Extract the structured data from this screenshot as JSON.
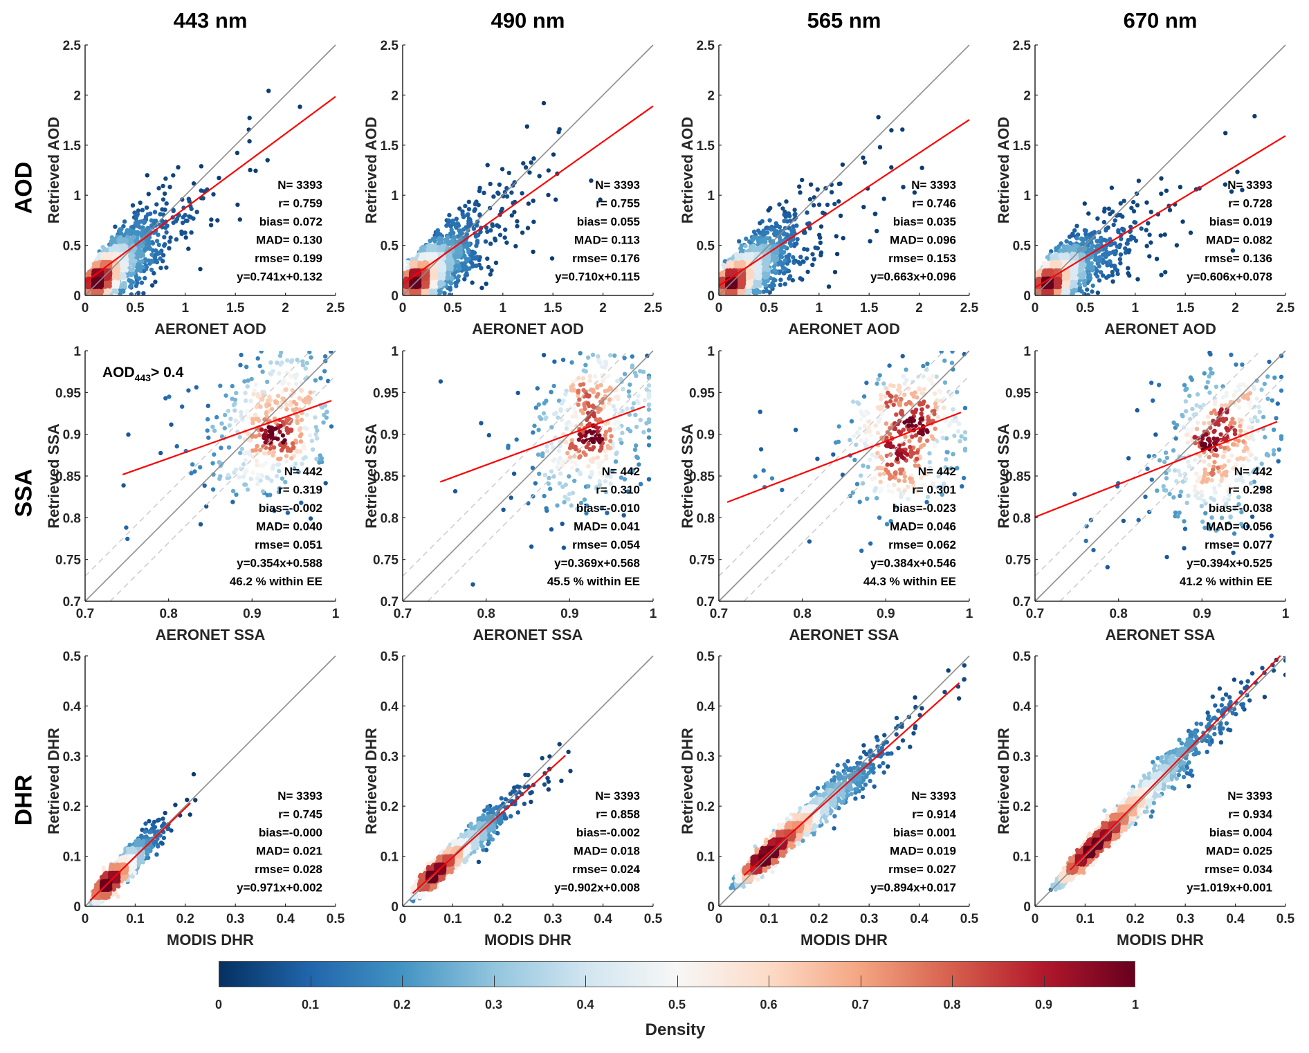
{
  "column_titles": [
    "443 nm",
    "490 nm",
    "565 nm",
    "670 nm"
  ],
  "row_labels": [
    "AOD",
    "SSA",
    "DHR"
  ],
  "colormap": [
    "#053061",
    "#2166ac",
    "#4393c3",
    "#92c5de",
    "#d1e5f0",
    "#f7f7f7",
    "#fddbc7",
    "#f4a582",
    "#d6604d",
    "#b2182b",
    "#67001f"
  ],
  "colorbar": {
    "label": "Density",
    "ticks": [
      "0",
      "0.1",
      "0.2",
      "0.3",
      "0.4",
      "0.5",
      "0.6",
      "0.7",
      "0.8",
      "0.9",
      "1"
    ],
    "range": [
      0,
      1
    ]
  },
  "chart_data": [
    {
      "type": "scatter",
      "row": "AOD",
      "column": "443 nm",
      "xlabel": "AERONET AOD",
      "ylabel": "Retrieved AOD",
      "xlim": [
        0,
        2.5
      ],
      "ylim": [
        0,
        2.5
      ],
      "xticks": [
        "0",
        "0.5",
        "1",
        "1.5",
        "2",
        "2.5"
      ],
      "yticks": [
        "0",
        "0.5",
        "1",
        "1.5",
        "2",
        "2.5"
      ],
      "stats": [
        "N=  3393",
        "r= 0.759",
        "bias= 0.072",
        "MAD= 0.130",
        "rmse= 0.199",
        "y=0.741x+0.132"
      ],
      "N": 3393,
      "r": 0.759,
      "fit": {
        "slope": 0.741,
        "intercept": 0.132,
        "x_range": [
          0,
          2.5
        ]
      },
      "one_to_one": true,
      "grid": false
    },
    {
      "type": "scatter",
      "row": "AOD",
      "column": "490 nm",
      "xlabel": "AERONET AOD",
      "ylabel": "Retrieved AOD",
      "xlim": [
        0,
        2.5
      ],
      "ylim": [
        0,
        2.5
      ],
      "xticks": [
        "0",
        "0.5",
        "1",
        "1.5",
        "2",
        "2.5"
      ],
      "yticks": [
        "0",
        "0.5",
        "1",
        "1.5",
        "2",
        "2.5"
      ],
      "stats": [
        "N=  3393",
        "r= 0.755",
        "bias= 0.055",
        "MAD= 0.113",
        "rmse= 0.176",
        "y=0.710x+0.115"
      ],
      "N": 3393,
      "r": 0.755,
      "fit": {
        "slope": 0.71,
        "intercept": 0.115,
        "x_range": [
          0,
          2.5
        ]
      },
      "one_to_one": true,
      "grid": false
    },
    {
      "type": "scatter",
      "row": "AOD",
      "column": "565 nm",
      "xlabel": "AERONET AOD",
      "ylabel": "Retrieved AOD",
      "xlim": [
        0,
        2.5
      ],
      "ylim": [
        0,
        2.5
      ],
      "xticks": [
        "0",
        "0.5",
        "1",
        "1.5",
        "2",
        "2.5"
      ],
      "yticks": [
        "0",
        "0.5",
        "1",
        "1.5",
        "2",
        "2.5"
      ],
      "stats": [
        "N=  3393",
        "r= 0.746",
        "bias= 0.035",
        "MAD= 0.096",
        "rmse= 0.153",
        "y=0.663x+0.096"
      ],
      "N": 3393,
      "r": 0.746,
      "fit": {
        "slope": 0.663,
        "intercept": 0.096,
        "x_range": [
          0,
          2.5
        ]
      },
      "one_to_one": true,
      "grid": false
    },
    {
      "type": "scatter",
      "row": "AOD",
      "column": "670 nm",
      "xlabel": "AERONET AOD",
      "ylabel": "Retrieved AOD",
      "xlim": [
        0,
        2.5
      ],
      "ylim": [
        0,
        2.5
      ],
      "xticks": [
        "0",
        "0.5",
        "1",
        "1.5",
        "2",
        "2.5"
      ],
      "yticks": [
        "0",
        "0.5",
        "1",
        "1.5",
        "2",
        "2.5"
      ],
      "stats": [
        "N=  3393",
        "r= 0.728",
        "bias= 0.019",
        "MAD= 0.082",
        "rmse= 0.136",
        "y=0.606x+0.078"
      ],
      "N": 3393,
      "r": 0.728,
      "fit": {
        "slope": 0.606,
        "intercept": 0.078,
        "x_range": [
          0,
          2.5
        ]
      },
      "one_to_one": true,
      "grid": false
    },
    {
      "type": "scatter",
      "row": "SSA",
      "column": "443 nm",
      "xlabel": "AERONET SSA",
      "ylabel": "Retrieved SSA",
      "xlim": [
        0.7,
        1
      ],
      "ylim": [
        0.7,
        1
      ],
      "xticks": [
        "0.7",
        "0.8",
        "0.9",
        "1"
      ],
      "yticks": [
        "0.7",
        "0.75",
        "0.8",
        "0.85",
        "0.9",
        "0.95",
        "1"
      ],
      "stats": [
        "N=   442",
        "r= 0.319",
        "bias=-0.002",
        "MAD= 0.040",
        "rmse= 0.051",
        "y=0.354x+0.588",
        "46.2 % within EE"
      ],
      "N": 442,
      "r": 0.319,
      "fit": {
        "slope": 0.354,
        "intercept": 0.588,
        "x_range": [
          0.745,
          0.995
        ]
      },
      "one_to_one": true,
      "ee_lines": 0.03,
      "annotation": {
        "main": "AOD",
        "sub": "443",
        "rest": "> 0.4"
      }
    },
    {
      "type": "scatter",
      "row": "SSA",
      "column": "490 nm",
      "xlabel": "AERONET SSA",
      "ylabel": "Retrieved SSA",
      "xlim": [
        0.7,
        1
      ],
      "ylim": [
        0.7,
        1
      ],
      "xticks": [
        "0.7",
        "0.8",
        "0.9",
        "1"
      ],
      "yticks": [
        "0.7",
        "0.75",
        "0.8",
        "0.85",
        "0.9",
        "0.95",
        "1"
      ],
      "stats": [
        "N=   442",
        "r= 0.310",
        "bias=-0.010",
        "MAD= 0.041",
        "rmse= 0.054",
        "y=0.369x+0.568",
        "45.5 % within EE"
      ],
      "N": 442,
      "r": 0.31,
      "fit": {
        "slope": 0.369,
        "intercept": 0.568,
        "x_range": [
          0.745,
          0.99
        ]
      },
      "one_to_one": true,
      "ee_lines": 0.03
    },
    {
      "type": "scatter",
      "row": "SSA",
      "column": "565 nm",
      "xlabel": "AERONET SSA",
      "ylabel": "Retrieved SSA",
      "xlim": [
        0.7,
        1
      ],
      "ylim": [
        0.7,
        1
      ],
      "xticks": [
        "0.7",
        "0.8",
        "0.9",
        "1"
      ],
      "yticks": [
        "0.7",
        "0.75",
        "0.8",
        "0.85",
        "0.9",
        "0.95",
        "1"
      ],
      "stats": [
        "N=   442",
        "r= 0.301",
        "bias=-0.023",
        "MAD= 0.046",
        "rmse= 0.062",
        "y=0.384x+0.546",
        "44.3 % within EE"
      ],
      "N": 442,
      "r": 0.301,
      "fit": {
        "slope": 0.384,
        "intercept": 0.546,
        "x_range": [
          0.71,
          0.99
        ]
      },
      "one_to_one": true,
      "ee_lines": 0.03
    },
    {
      "type": "scatter",
      "row": "SSA",
      "column": "670 nm",
      "xlabel": "AERONET SSA",
      "ylabel": "Retrieved SSA",
      "xlim": [
        0.7,
        1
      ],
      "ylim": [
        0.7,
        1
      ],
      "xticks": [
        "0.7",
        "0.8",
        "0.9",
        "1"
      ],
      "yticks": [
        "0.7",
        "0.75",
        "0.8",
        "0.85",
        "0.9",
        "0.95",
        "1"
      ],
      "stats": [
        "N=   442",
        "r= 0.298",
        "bias=-0.038",
        "MAD= 0.056",
        "rmse= 0.077",
        "y=0.394x+0.525",
        "41.2 % within EE"
      ],
      "N": 442,
      "r": 0.298,
      "fit": {
        "slope": 0.394,
        "intercept": 0.525,
        "x_range": [
          0.7,
          0.99
        ]
      },
      "one_to_one": true,
      "ee_lines": 0.03
    },
    {
      "type": "scatter",
      "row": "DHR",
      "column": "443 nm",
      "xlabel": "MODIS DHR",
      "ylabel": "Retrieved DHR",
      "xlim": [
        0,
        0.5
      ],
      "ylim": [
        0,
        0.5
      ],
      "xticks": [
        "0",
        "0.1",
        "0.2",
        "0.3",
        "0.4",
        "0.5"
      ],
      "yticks": [
        "0",
        "0.1",
        "0.2",
        "0.3",
        "0.4",
        "0.5"
      ],
      "stats": [
        "N=  3393",
        "r= 0.745",
        "bias=-0.000",
        "MAD= 0.021",
        "rmse= 0.028",
        "y=0.971x+0.002"
      ],
      "N": 3393,
      "r": 0.745,
      "fit": {
        "slope": 0.971,
        "intercept": 0.002,
        "x_range": [
          0.01,
          0.21
        ]
      },
      "one_to_one": true
    },
    {
      "type": "scatter",
      "row": "DHR",
      "column": "490 nm",
      "xlabel": "MODIS DHR",
      "ylabel": "Retrieved DHR",
      "xlim": [
        0,
        0.5
      ],
      "ylim": [
        0,
        0.5
      ],
      "xticks": [
        "0",
        "0.1",
        "0.2",
        "0.3",
        "0.4",
        "0.5"
      ],
      "yticks": [
        "0",
        "0.1",
        "0.2",
        "0.3",
        "0.4",
        "0.5"
      ],
      "stats": [
        "N=  3393",
        "r= 0.858",
        "bias=-0.002",
        "MAD= 0.018",
        "rmse= 0.024",
        "y=0.902x+0.008"
      ],
      "N": 3393,
      "r": 0.858,
      "fit": {
        "slope": 0.902,
        "intercept": 0.008,
        "x_range": [
          0.02,
          0.325
        ]
      },
      "one_to_one": true
    },
    {
      "type": "scatter",
      "row": "DHR",
      "column": "565 nm",
      "xlabel": "MODIS DHR",
      "ylabel": "Retrieved DHR",
      "xlim": [
        0,
        0.5
      ],
      "ylim": [
        0,
        0.5
      ],
      "xticks": [
        "0",
        "0.1",
        "0.2",
        "0.3",
        "0.4",
        "0.5"
      ],
      "yticks": [
        "0",
        "0.1",
        "0.2",
        "0.3",
        "0.4",
        "0.5"
      ],
      "stats": [
        "N=  3393",
        "r= 0.914",
        "bias= 0.001",
        "MAD= 0.019",
        "rmse= 0.027",
        "y=0.894x+0.017"
      ],
      "N": 3393,
      "r": 0.914,
      "fit": {
        "slope": 0.894,
        "intercept": 0.017,
        "x_range": [
          0.05,
          0.48
        ]
      },
      "one_to_one": true
    },
    {
      "type": "scatter",
      "row": "DHR",
      "column": "670 nm",
      "xlabel": "MODIS DHR",
      "ylabel": "Retrieved DHR",
      "xlim": [
        0,
        0.5
      ],
      "ylim": [
        0,
        0.5
      ],
      "xticks": [
        "0",
        "0.1",
        "0.2",
        "0.3",
        "0.4",
        "0.5"
      ],
      "yticks": [
        "0",
        "0.1",
        "0.2",
        "0.3",
        "0.4",
        "0.5"
      ],
      "stats": [
        "N=  3393",
        "r= 0.934",
        "bias= 0.004",
        "MAD= 0.025",
        "rmse= 0.034",
        "y=1.019x+0.001"
      ],
      "N": 3393,
      "r": 0.934,
      "fit": {
        "slope": 1.019,
        "intercept": 0.001,
        "x_range": [
          0.07,
          0.49
        ]
      },
      "one_to_one": true
    }
  ]
}
